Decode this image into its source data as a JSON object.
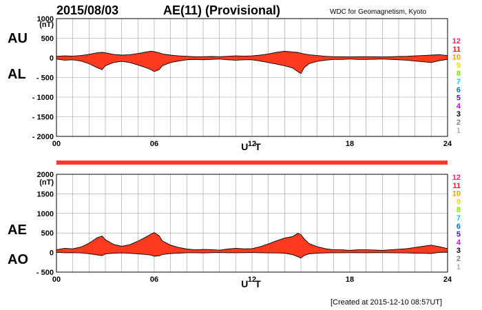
{
  "header": {
    "date": "2015/08/03",
    "title": "AE(11) (Provisional)",
    "source": "WDC for Geomagnetism, Kyoto"
  },
  "footer": {
    "created": "[Created at 2015-12-10 08:57UT]"
  },
  "legend": {
    "items": [
      {
        "label": "12",
        "color": "#e8207a"
      },
      {
        "label": "11",
        "color": "#e02020"
      },
      {
        "label": "10",
        "color": "#f0a000"
      },
      {
        "label": "9",
        "color": "#e0e000"
      },
      {
        "label": "8",
        "color": "#80e000"
      },
      {
        "label": "7",
        "color": "#00d0d0"
      },
      {
        "label": "6",
        "color": "#0070e0"
      },
      {
        "label": "5",
        "color": "#5010b0"
      },
      {
        "label": "4",
        "color": "#e000e0"
      },
      {
        "label": "3",
        "color": "#000000"
      },
      {
        "label": "2",
        "color": "#808080"
      },
      {
        "label": "1",
        "color": "#b0b0b0"
      }
    ]
  },
  "colors": {
    "fill": "#ff3a1e",
    "line": "#000000",
    "grid": "#999999"
  },
  "chart_data": [
    {
      "type": "area",
      "panel": "AU/AL",
      "side_labels": [
        "AU",
        "AL"
      ],
      "unit_label": "(nT)",
      "xlabel": "U T",
      "xlim": [
        0,
        24
      ],
      "x_ticks": [
        0,
        6,
        12,
        18,
        24
      ],
      "x_tick_labels": [
        "00",
        "06",
        "12",
        "18",
        "24"
      ],
      "ylim": [
        -2000,
        1000
      ],
      "y_ticks": [
        1000,
        500,
        0,
        -500,
        -1000,
        -1500,
        -2000
      ],
      "y_tick_labels": [
        "1000",
        "500",
        "0",
        "- 500",
        "- 1000",
        "- 1500",
        "- 2000"
      ],
      "grid": true,
      "x": [
        0,
        0.5,
        1,
        1.5,
        2,
        2.5,
        2.8,
        3,
        3.5,
        4,
        4.5,
        5,
        5.5,
        5.8,
        6,
        6.3,
        6.5,
        7,
        7.5,
        8,
        8.5,
        9,
        9.5,
        10,
        10.5,
        11,
        11.5,
        12,
        12.5,
        13,
        13.5,
        14,
        14.5,
        14.8,
        15,
        15.2,
        15.5,
        16,
        16.5,
        17,
        17.5,
        18,
        18.5,
        19,
        19.5,
        20,
        20.5,
        21,
        21.5,
        22,
        22.5,
        23,
        23.5,
        24
      ],
      "series": [
        {
          "name": "AU",
          "values": [
            40,
            50,
            45,
            60,
            90,
            130,
            140,
            130,
            90,
            70,
            80,
            110,
            150,
            170,
            160,
            130,
            100,
            70,
            50,
            40,
            30,
            30,
            35,
            30,
            40,
            50,
            45,
            50,
            70,
            100,
            140,
            170,
            150,
            140,
            120,
            100,
            80,
            60,
            40,
            30,
            30,
            25,
            30,
            30,
            30,
            25,
            30,
            35,
            40,
            50,
            60,
            70,
            80,
            60
          ]
        },
        {
          "name": "AL",
          "values": [
            -30,
            -60,
            -50,
            -80,
            -150,
            -250,
            -300,
            -200,
            -120,
            -90,
            -120,
            -180,
            -250,
            -300,
            -350,
            -300,
            -200,
            -120,
            -80,
            -50,
            -40,
            -50,
            -40,
            -30,
            -50,
            -60,
            -50,
            -50,
            -80,
            -120,
            -160,
            -200,
            -260,
            -350,
            -400,
            -250,
            -150,
            -90,
            -60,
            -40,
            -40,
            -30,
            -40,
            -40,
            -35,
            -30,
            -40,
            -50,
            -60,
            -80,
            -100,
            -120,
            -70,
            -40
          ]
        }
      ]
    },
    {
      "type": "area",
      "panel": "AE/AO",
      "side_labels": [
        "AE",
        "AO"
      ],
      "unit_label": "(nT)",
      "xlabel": "U T",
      "xlim": [
        0,
        24
      ],
      "x_ticks": [
        0,
        6,
        12,
        18,
        24
      ],
      "x_tick_labels": [
        "00",
        "06",
        "12",
        "18",
        "24"
      ],
      "ylim": [
        -500,
        2000
      ],
      "y_ticks": [
        2000,
        1500,
        1000,
        500,
        0,
        -500
      ],
      "y_tick_labels": [
        "2000",
        "1500",
        "1000",
        "500",
        "0",
        "- 500"
      ],
      "grid": true,
      "x": [
        0,
        0.5,
        1,
        1.5,
        2,
        2.5,
        2.8,
        3,
        3.5,
        4,
        4.5,
        5,
        5.5,
        5.8,
        6,
        6.3,
        6.5,
        7,
        7.5,
        8,
        8.5,
        9,
        9.5,
        10,
        10.5,
        11,
        11.5,
        12,
        12.5,
        13,
        13.5,
        14,
        14.5,
        14.8,
        15,
        15.2,
        15.5,
        16,
        16.5,
        17,
        17.5,
        18,
        18.5,
        19,
        19.5,
        20,
        20.5,
        21,
        21.5,
        22,
        22.5,
        23,
        23.5,
        24
      ],
      "series": [
        {
          "name": "AE",
          "values": [
            70,
            110,
            95,
            140,
            240,
            380,
            420,
            330,
            210,
            160,
            200,
            290,
            400,
            470,
            510,
            430,
            300,
            190,
            130,
            90,
            70,
            80,
            75,
            60,
            90,
            110,
            95,
            100,
            150,
            220,
            300,
            370,
            410,
            490,
            460,
            350,
            230,
            150,
            100,
            70,
            70,
            55,
            70,
            70,
            65,
            55,
            70,
            85,
            100,
            130,
            160,
            190,
            150,
            100
          ]
        },
        {
          "name": "AO",
          "values": [
            5,
            -5,
            -3,
            -10,
            -30,
            -60,
            -80,
            -35,
            -15,
            -10,
            -20,
            -35,
            -50,
            -65,
            -95,
            -85,
            -50,
            -25,
            -15,
            -5,
            -5,
            -10,
            -3,
            0,
            -5,
            -5,
            -3,
            0,
            -5,
            -10,
            -10,
            -15,
            -55,
            -105,
            -140,
            -75,
            -35,
            -15,
            -10,
            -5,
            -5,
            -3,
            -5,
            -5,
            -3,
            -3,
            -5,
            -8,
            -10,
            -15,
            -20,
            -25,
            5,
            10
          ]
        }
      ]
    }
  ]
}
